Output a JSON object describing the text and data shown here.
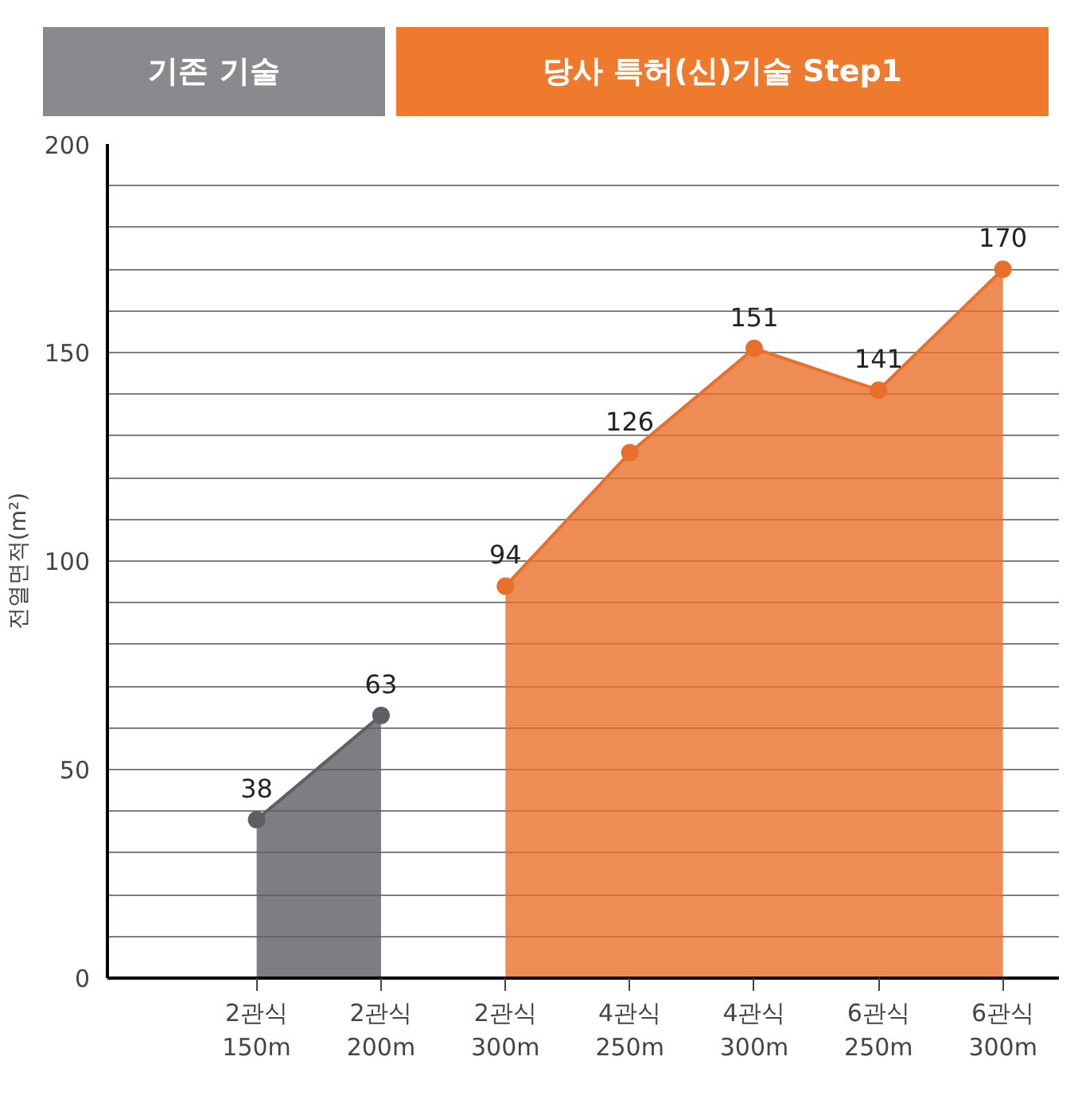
{
  "chart_data": {
    "type": "area",
    "ylabel": "전열면적(m²)",
    "annotations": [
      "기존 기술",
      "당사 특허(신)기술 Step1"
    ],
    "categories": [
      "2관식\n150m",
      "2관식\n200m",
      "2관식\n300m",
      "4관식\n250m",
      "4관식\n300m",
      "6관식\n250m",
      "6관식\n300m"
    ],
    "series": [
      {
        "color": "#5e5e63",
        "values": [
          38,
          63,
          null,
          null,
          null,
          null,
          null
        ]
      },
      {
        "color": "#e8702a",
        "values": [
          null,
          null,
          94,
          126,
          151,
          141,
          170
        ]
      }
    ],
    "ylim": [
      0,
      200
    ],
    "yticks": [
      0,
      {
        "value": 10,
        "label": null
      },
      {
        "value": 20,
        "label": null
      },
      {
        "value": 30,
        "label": null
      },
      {
        "value": 40,
        "label": null
      },
      50,
      {
        "value": 60,
        "label": null
      },
      {
        "value": 70,
        "label": null
      },
      {
        "value": 80,
        "label": null
      },
      {
        "value": 90,
        "label": null
      },
      100,
      {
        "value": 110,
        "label": null
      },
      {
        "value": 120,
        "label": null
      },
      {
        "value": 130,
        "label": null
      },
      {
        "value": 140,
        "label": null
      },
      150,
      {
        "value": 160,
        "label": null
      },
      {
        "value": 170,
        "label": null
      },
      {
        "value": 180,
        "label": null
      },
      {
        "value": 190,
        "label": null
      },
      200
    ],
    "grid": "y",
    "marker": "circle",
    "data_labels": true
  }
}
